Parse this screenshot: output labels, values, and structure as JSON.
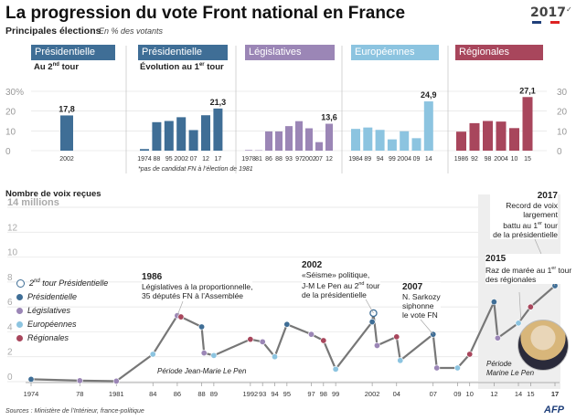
{
  "header": {
    "title": "La progression du vote Front national en France",
    "subtitle": "Principales élections",
    "unit": "En % des votants",
    "year_logo": "2017",
    "year_logo_sup": "✓"
  },
  "colors": {
    "presidentielle": "#3f6e96",
    "legislatives": "#9b86b6",
    "europeennes": "#8cc4e0",
    "regionales": "#a8465c",
    "presidentielle_2nd": "#ffffff"
  },
  "panels": {
    "pres2_header": "Présidentielle",
    "pres2_sub": "Au 2",
    "pres2_sub_sup": "nd",
    "pres2_sub_end": " tour",
    "pres1_header": "Présidentielle",
    "pres1_sub": "Évolution au 1",
    "pres1_sub_sup": "er",
    "pres1_sub_end": " tour",
    "leg_header": "Législatives",
    "eur_header": "Européennes",
    "reg_header": "Régionales",
    "note": "*pas de candidat FN à l’élection de 1981",
    "left_ticks": [
      "30%",
      "20",
      "10",
      "0"
    ],
    "right_ticks": [
      "30",
      "20",
      "10",
      "0"
    ]
  },
  "chart_data": [
    {
      "type": "bar",
      "title": "Présidentielle — Au 2nd tour",
      "categories": [
        "2002"
      ],
      "values": [
        17.8
      ],
      "data_labels": [
        "17,8"
      ],
      "ylim": [
        0,
        30
      ]
    },
    {
      "type": "bar",
      "title": "Présidentielle — Évolution au 1er tour",
      "categories": [
        "1974",
        "88",
        "95",
        "2002",
        "07",
        "12",
        "17"
      ],
      "values": [
        0.8,
        14.4,
        15.0,
        16.9,
        10.4,
        17.9,
        21.3
      ],
      "data_labels": [
        "",
        "",
        "",
        "",
        "",
        "",
        "21,3"
      ],
      "ylim": [
        0,
        30
      ]
    },
    {
      "type": "bar",
      "title": "Législatives",
      "categories": [
        "1978",
        "81",
        "86",
        "88",
        "93",
        "97",
        "2002",
        "07",
        "12"
      ],
      "values": [
        0.3,
        0.2,
        9.7,
        9.7,
        12.4,
        14.9,
        11.3,
        4.3,
        13.6
      ],
      "data_labels": [
        "",
        "",
        "",
        "",
        "",
        "",
        "",
        "",
        "13,6"
      ],
      "ylim": [
        0,
        30
      ]
    },
    {
      "type": "bar",
      "title": "Européennes",
      "categories": [
        "1984",
        "89",
        "94",
        "99",
        "2004",
        "09",
        "14"
      ],
      "values": [
        11.0,
        11.7,
        10.5,
        5.7,
        9.8,
        6.3,
        24.9
      ],
      "data_labels": [
        "",
        "",
        "",
        "",
        "",
        "",
        "24,9"
      ],
      "ylim": [
        0,
        30
      ]
    },
    {
      "type": "bar",
      "title": "Régionales",
      "categories": [
        "1986",
        "92",
        "98",
        "2004",
        "10",
        "15"
      ],
      "values": [
        9.6,
        13.9,
        15.0,
        14.7,
        11.4,
        27.1
      ],
      "data_labels": [
        "",
        "",
        "",
        "",
        "",
        "27,1"
      ],
      "ylim": [
        0,
        30
      ]
    },
    {
      "type": "line",
      "title": "Nombre de voix reçues",
      "ylabel": "millions",
      "ylim": [
        0,
        14
      ],
      "yticks": [
        "14 millions",
        "12",
        "10",
        "8",
        "6",
        "4",
        "2",
        "0"
      ],
      "xlim": [
        1974,
        2017
      ],
      "xticks": [
        "1974",
        "78",
        "1981",
        "84",
        "86",
        "88",
        "89",
        "1992",
        "93",
        "94",
        "95",
        "97",
        "98",
        "99",
        "2002",
        "04",
        "07",
        "09",
        "10",
        "12",
        "14",
        "15",
        "17"
      ],
      "xtick_values": [
        1974,
        1978,
        1981,
        1984,
        1986,
        1988,
        1989,
        1992,
        1993,
        1994,
        1995,
        1997,
        1998,
        1999,
        2002,
        2004,
        2007,
        2009,
        2010,
        2012,
        2014,
        2015,
        2017
      ],
      "series": [
        {
          "name": "Nombre de voix",
          "points": [
            {
              "x": 1974.0,
              "y": 0.19,
              "kind": "pres1"
            },
            {
              "x": 1978.0,
              "y": 0.08,
              "kind": "leg"
            },
            {
              "x": 1981.0,
              "y": 0.04,
              "kind": "leg"
            },
            {
              "x": 1984.0,
              "y": 2.2,
              "kind": "eur"
            },
            {
              "x": 1986.0,
              "y": 5.3,
              "kind": "leg"
            },
            {
              "x": 1986.3,
              "y": 5.2,
              "kind": "reg"
            },
            {
              "x": 1988.0,
              "y": 4.4,
              "kind": "pres1"
            },
            {
              "x": 1988.2,
              "y": 2.3,
              "kind": "leg"
            },
            {
              "x": 1989.0,
              "y": 2.1,
              "kind": "eur"
            },
            {
              "x": 1992.0,
              "y": 3.4,
              "kind": "reg"
            },
            {
              "x": 1993.0,
              "y": 3.2,
              "kind": "leg"
            },
            {
              "x": 1994.0,
              "y": 2.0,
              "kind": "eur"
            },
            {
              "x": 1995.0,
              "y": 4.6,
              "kind": "pres1"
            },
            {
              "x": 1997.0,
              "y": 3.8,
              "kind": "leg"
            },
            {
              "x": 1998.0,
              "y": 3.3,
              "kind": "reg"
            },
            {
              "x": 1999.0,
              "y": 1.0,
              "kind": "eur"
            },
            {
              "x": 2002.0,
              "y": 4.8,
              "kind": "pres1"
            },
            {
              "x": 2002.1,
              "y": 5.5,
              "kind": "pres2"
            },
            {
              "x": 2002.4,
              "y": 2.9,
              "kind": "leg"
            },
            {
              "x": 2004.0,
              "y": 3.6,
              "kind": "reg"
            },
            {
              "x": 2004.3,
              "y": 1.7,
              "kind": "eur"
            },
            {
              "x": 2007.0,
              "y": 3.8,
              "kind": "pres1"
            },
            {
              "x": 2007.3,
              "y": 1.1,
              "kind": "leg"
            },
            {
              "x": 2009.0,
              "y": 1.1,
              "kind": "eur"
            },
            {
              "x": 2010.0,
              "y": 2.2,
              "kind": "reg"
            },
            {
              "x": 2012.0,
              "y": 6.4,
              "kind": "pres1"
            },
            {
              "x": 2012.3,
              "y": 3.5,
              "kind": "leg"
            },
            {
              "x": 2014.0,
              "y": 4.7,
              "kind": "eur"
            },
            {
              "x": 2015.0,
              "y": 6.0,
              "kind": "reg"
            },
            {
              "x": 2017.0,
              "y": 7.7,
              "kind": "pres1"
            }
          ]
        }
      ],
      "legend": [
        {
          "kind": "pres2",
          "label": "2",
          "sup": "nd",
          "label_end": " tour Présidentielle"
        },
        {
          "kind": "pres1",
          "label": "Présidentielle",
          "sup": "",
          "label_end": ""
        },
        {
          "kind": "leg",
          "label": "Législatives",
          "sup": "",
          "label_end": ""
        },
        {
          "kind": "eur",
          "label": "Européennes",
          "sup": "",
          "label_end": ""
        },
        {
          "kind": "reg",
          "label": "Régionales",
          "sup": "",
          "label_end": ""
        }
      ],
      "periods": [
        "Période Jean-Marie Le Pen",
        "Période",
        "Marine Le Pen"
      ]
    }
  ],
  "annotations": {
    "a1986_year": "1986",
    "a1986_l1": "Législatives à la proportionnelle,",
    "a1986_l2": "35 députés FN à l’Assemblée",
    "a2002_year": "2002",
    "a2002_l1": "«Séisme» politique,",
    "a2002_l2a": "J-M Le Pen au 2",
    "a2002_l2sup": "nd",
    "a2002_l2b": " tour",
    "a2002_l3": "de la présidentielle",
    "a2007_year": "2007",
    "a2007_l1": "N. Sarkozy",
    "a2007_l2": "siphonne",
    "a2007_l3": "le vote FN",
    "a2015_year": "2015",
    "a2015_l1": "Raz de marée au 1",
    "a2015_l1sup": "er",
    "a2015_l1b": " tour",
    "a2015_l2": "des régionales",
    "a2017_year": "2017",
    "a2017_l1": "Record de voix",
    "a2017_l2": "largement",
    "a2017_l3a": "battu au 1",
    "a2017_l3sup": "er",
    "a2017_l3b": " tour",
    "a2017_l4": "de la présidentielle"
  },
  "sections": {
    "voices_title": "Nombre de voix reçues"
  },
  "footer": {
    "source": "Sources : Ministère de l’Intérieur, france-politique",
    "agency": "AFP"
  }
}
